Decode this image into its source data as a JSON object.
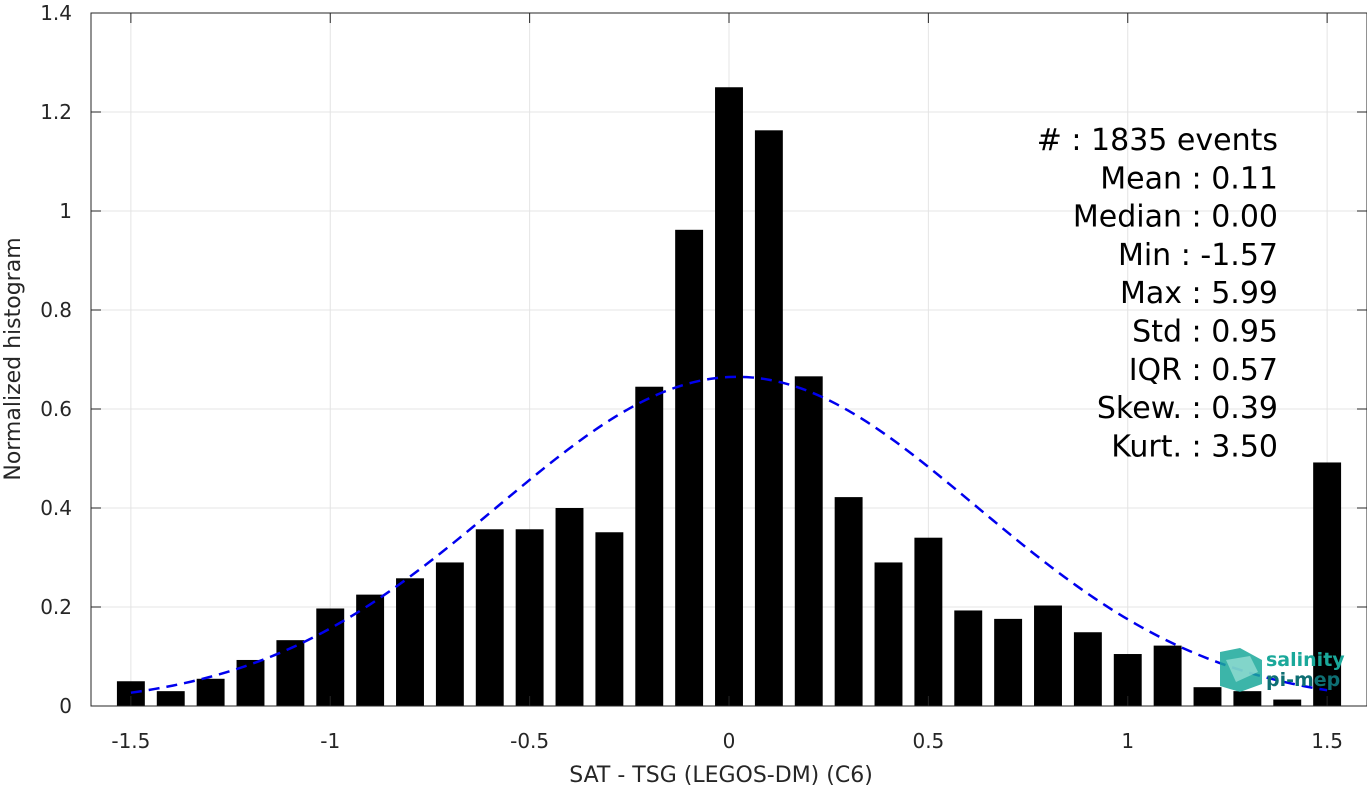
{
  "chart_data": {
    "type": "bar",
    "xlabel": "SAT - TSG (LEGOS-DM) (C6)",
    "ylabel": "Normalized histogram",
    "xlim": [
      -1.6,
      1.6
    ],
    "ylim": [
      0,
      1.4
    ],
    "xticks": [
      -1.5,
      -1,
      -0.5,
      0,
      0.5,
      1,
      1.5
    ],
    "xtick_labels": [
      "-1.5",
      "-1",
      "-0.5",
      "0",
      "0.5",
      "1",
      "1.5"
    ],
    "yticks": [
      0,
      0.2,
      0.4,
      0.6,
      0.8,
      1,
      1.2,
      1.4
    ],
    "ytick_labels": [
      "0",
      "0.2",
      "0.4",
      "0.6",
      "0.8",
      "1",
      "1.2",
      "1.4"
    ],
    "grid": true,
    "bar_width": 0.07,
    "bars": {
      "x": [
        -1.5,
        -1.4,
        -1.3,
        -1.2,
        -1.1,
        -1.0,
        -0.9,
        -0.8,
        -0.7,
        -0.6,
        -0.5,
        -0.4,
        -0.3,
        -0.2,
        -0.1,
        0.0,
        0.1,
        0.2,
        0.3,
        0.4,
        0.5,
        0.6,
        0.7,
        0.8,
        0.9,
        1.0,
        1.1,
        1.2,
        1.3,
        1.4,
        1.5
      ],
      "values": [
        0.05,
        0.03,
        0.055,
        0.093,
        0.133,
        0.197,
        0.225,
        0.258,
        0.29,
        0.357,
        0.357,
        0.4,
        0.351,
        0.645,
        0.962,
        1.25,
        1.163,
        0.666,
        0.422,
        0.29,
        0.34,
        0.193,
        0.176,
        0.203,
        0.149,
        0.105,
        0.122,
        0.038,
        0.03,
        0.013,
        0.492
      ],
      "color": "#000000"
    },
    "fit_curve": {
      "style": "dashed",
      "color": "#0000ee",
      "mean": 0.02,
      "std": 0.6,
      "peak": 0.665,
      "x_range": [
        -1.5,
        1.5
      ]
    },
    "annotations": [
      {
        "label": "#  ",
        "value": ": 1835 events"
      },
      {
        "label": "Mean ",
        "value": ": 0.11"
      },
      {
        "label": "Median ",
        "value": ": 0.00"
      },
      {
        "label": "Min ",
        "value": ": -1.57"
      },
      {
        "label": "Max ",
        "value": ": 5.99"
      },
      {
        "label": "Std ",
        "value": ": 0.95"
      },
      {
        "label": "IQR ",
        "value": ": 0.57"
      },
      {
        "label": "Skew. ",
        "value": ": 0.39"
      },
      {
        "label": "Kurt. ",
        "value": ": 3.50"
      }
    ]
  },
  "logo": {
    "line1": "salinity",
    "line2": "pi-mep",
    "color": "#1aa89a"
  }
}
